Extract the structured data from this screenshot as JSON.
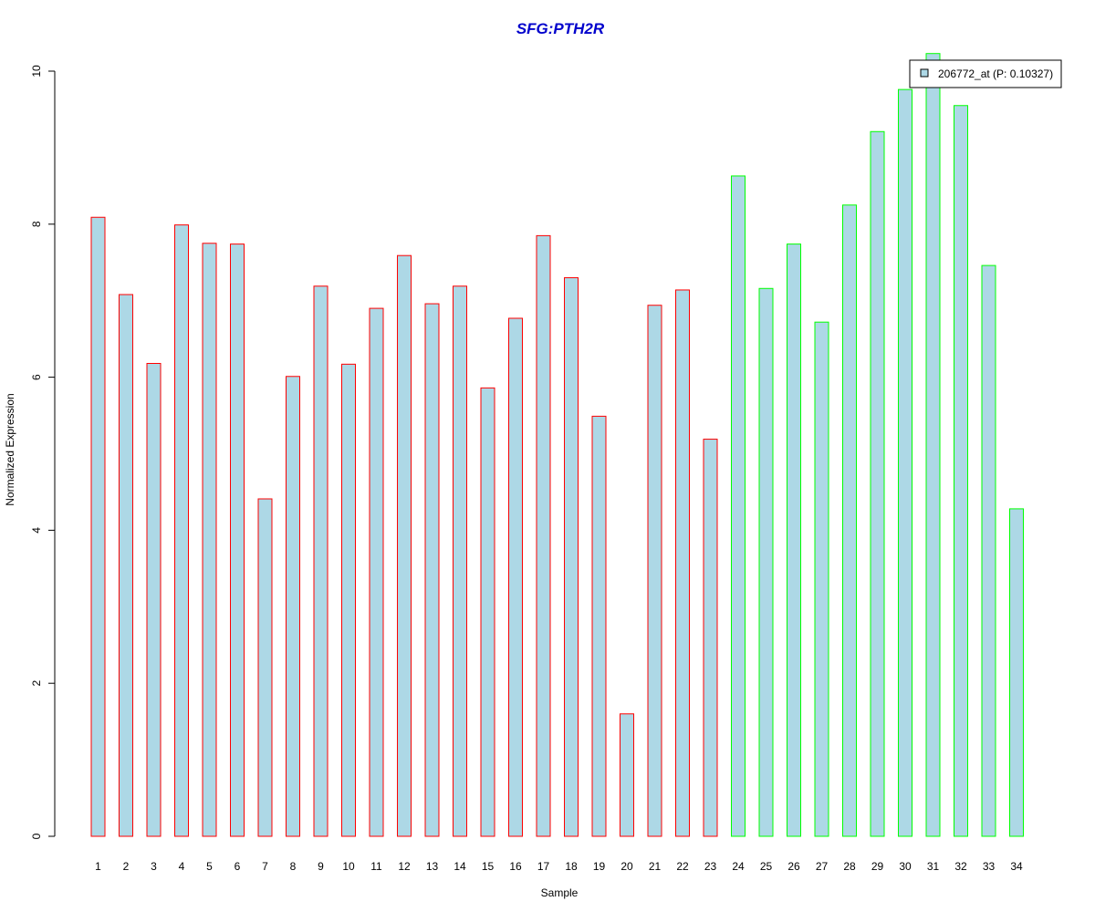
{
  "chart_data": {
    "type": "bar",
    "title": "SFG:PTH2R",
    "xlabel": "Sample",
    "ylabel": "Normalized Expression",
    "ylim": [
      0,
      10
    ],
    "y_ticks": [
      "0",
      "2",
      "4",
      "6",
      "8",
      "10"
    ],
    "categories": [
      "1",
      "2",
      "3",
      "4",
      "5",
      "6",
      "7",
      "8",
      "9",
      "10",
      "11",
      "12",
      "13",
      "14",
      "15",
      "16",
      "17",
      "18",
      "19",
      "20",
      "21",
      "22",
      "23",
      "24",
      "25",
      "26",
      "27",
      "28",
      "29",
      "30",
      "31",
      "32",
      "33",
      "34"
    ],
    "series": [
      {
        "name": "206772_at (P: 0.10327)",
        "values": [
          8.09,
          7.08,
          6.18,
          7.99,
          7.75,
          7.74,
          4.41,
          6.01,
          7.19,
          6.17,
          6.9,
          7.59,
          6.96,
          7.19,
          5.86,
          6.77,
          7.85,
          7.3,
          5.49,
          1.6,
          6.94,
          7.14,
          5.19,
          8.63,
          7.16,
          7.74,
          6.72,
          8.25,
          9.21,
          9.76,
          10.23,
          9.55,
          7.46,
          4.28
        ]
      }
    ],
    "bar_fill": "#add8e6",
    "group_outline_colors": {
      "group1": "#ff0000",
      "group2": "#00ff00"
    },
    "group1_count": 23,
    "grid": false,
    "legend_position": "top-right",
    "title_color": "#0000cc"
  }
}
